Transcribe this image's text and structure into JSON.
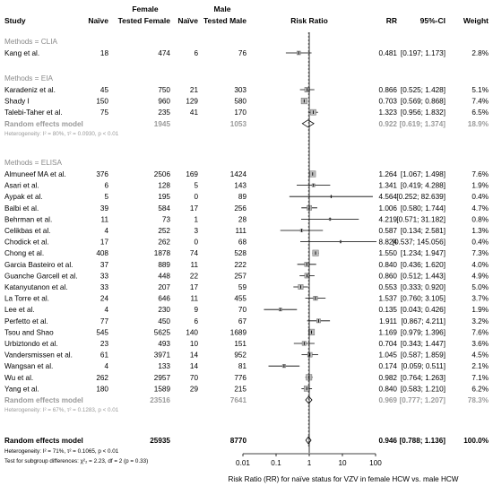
{
  "header": {
    "study": "Study",
    "female_group": "Female",
    "male_group": "Male",
    "naive": "Naïve",
    "tested_female": "Tested Female",
    "tested_male": "Tested Male",
    "risk_ratio": "Risk Ratio",
    "rr": "RR",
    "ci": "95%-CI",
    "weight": "Weight"
  },
  "chart_data": {
    "type": "forest",
    "xlabel": "Risk Ratio (RR) for naïve status for VZV in female HCW vs. male HCW",
    "x_scale": "log",
    "x_ticks": [
      "0.01",
      "0.1",
      "1",
      "10",
      "100"
    ],
    "xlim": [
      0.01,
      100
    ],
    "reference_line": 1,
    "groups": [
      {
        "label": "Methods = CLIA",
        "studies": [
          {
            "study": "Kang et al.",
            "naive_f": "18",
            "tested_f": "474",
            "naive_m": "6",
            "tested_m": "76",
            "rr_text": "0.481",
            "ci_text": "[0.197; 1.173]",
            "weight_text": "2.8%",
            "rr": 0.481,
            "lo": 0.197,
            "hi": 1.173,
            "w": 2.8
          }
        ]
      },
      {
        "label": "Methods = EIA",
        "studies": [
          {
            "study": "Karadeniz et al.",
            "naive_f": "45",
            "tested_f": "750",
            "naive_m": "21",
            "tested_m": "303",
            "rr_text": "0.866",
            "ci_text": "[0.525; 1.428]",
            "weight_text": "5.1%",
            "rr": 0.866,
            "lo": 0.525,
            "hi": 1.428,
            "w": 5.1
          },
          {
            "study": "Shady I",
            "naive_f": "150",
            "tested_f": "960",
            "naive_m": "129",
            "tested_m": "580",
            "rr_text": "0.703",
            "ci_text": "[0.569; 0.868]",
            "weight_text": "7.4%",
            "rr": 0.703,
            "lo": 0.569,
            "hi": 0.868,
            "w": 7.4
          },
          {
            "study": "Talebi-Taher et al.",
            "naive_f": "75",
            "tested_f": "235",
            "naive_m": "41",
            "tested_m": "170",
            "rr_text": "1.323",
            "ci_text": "[0.956; 1.832]",
            "weight_text": "6.5%",
            "rr": 1.323,
            "lo": 0.956,
            "hi": 1.832,
            "w": 6.5
          }
        ],
        "summary": {
          "label": "Random effects model",
          "tested_f": "1945",
          "tested_m": "1053",
          "rr_text": "0.922",
          "ci_text": "[0.619; 1.374]",
          "weight_text": "18.9%",
          "rr": 0.922,
          "lo": 0.619,
          "hi": 1.374
        },
        "heterogeneity": "Heterogeneity: I² = 80%, τ² = 0.0930, p < 0.01"
      },
      {
        "label": "Methods = ELISA",
        "studies": [
          {
            "study": "Almuneef MA et al.",
            "naive_f": "376",
            "tested_f": "2506",
            "naive_m": "169",
            "tested_m": "1424",
            "rr_text": "1.264",
            "ci_text": "[1.067; 1.498]",
            "weight_text": "7.6%",
            "rr": 1.264,
            "lo": 1.067,
            "hi": 1.498,
            "w": 7.6
          },
          {
            "study": "Asari et al.",
            "naive_f": "6",
            "tested_f": "128",
            "naive_m": "5",
            "tested_m": "143",
            "rr_text": "1.341",
            "ci_text": "[0.419; 4.288]",
            "weight_text": "1.9%",
            "rr": 1.341,
            "lo": 0.419,
            "hi": 4.288,
            "w": 1.9
          },
          {
            "study": "Aypak et al.",
            "naive_f": "5",
            "tested_f": "195",
            "naive_m": "0",
            "tested_m": "89",
            "rr_text": "4.564",
            "ci_text": "[0.252; 82.639]",
            "weight_text": "0.4%",
            "rr": 4.564,
            "lo": 0.252,
            "hi": 82.639,
            "w": 0.4
          },
          {
            "study": "Balbi et al.",
            "naive_f": "39",
            "tested_f": "584",
            "naive_m": "17",
            "tested_m": "256",
            "rr_text": "1.006",
            "ci_text": "[0.580; 1.744]",
            "weight_text": "4.7%",
            "rr": 1.006,
            "lo": 0.58,
            "hi": 1.744,
            "w": 4.7
          },
          {
            "study": "Behrman et al.",
            "naive_f": "11",
            "tested_f": "73",
            "naive_m": "1",
            "tested_m": "28",
            "rr_text": "4.219",
            "ci_text": "[0.571; 31.182]",
            "weight_text": "0.8%",
            "rr": 4.219,
            "lo": 0.571,
            "hi": 31.182,
            "w": 0.8
          },
          {
            "study": "Celikbas et al.",
            "naive_f": "4",
            "tested_f": "252",
            "naive_m": "3",
            "tested_m": "111",
            "rr_text": "0.587",
            "ci_text": "[0.134; 2.581]",
            "weight_text": "1.3%",
            "rr": 0.587,
            "lo": 0.134,
            "hi": 2.581,
            "w": 1.3
          },
          {
            "study": "Chodick et al.",
            "naive_f": "17",
            "tested_f": "262",
            "naive_m": "0",
            "tested_m": "68",
            "rr_text": "8.824",
            "ci_text": "[0.537; 145.056]",
            "weight_text": "0.4%",
            "rr": 8.824,
            "lo": 0.537,
            "hi": 145.056,
            "w": 0.4
          },
          {
            "study": "Chong et al.",
            "naive_f": "408",
            "tested_f": "1878",
            "naive_m": "74",
            "tested_m": "528",
            "rr_text": "1.550",
            "ci_text": "[1.234; 1.947]",
            "weight_text": "7.3%",
            "rr": 1.55,
            "lo": 1.234,
            "hi": 1.947,
            "w": 7.3
          },
          {
            "study": "Garcia Basteiro et al.",
            "naive_f": "37",
            "tested_f": "889",
            "naive_m": "11",
            "tested_m": "222",
            "rr_text": "0.840",
            "ci_text": "[0.436; 1.620]",
            "weight_text": "4.0%",
            "rr": 0.84,
            "lo": 0.436,
            "hi": 1.62,
            "w": 4.0
          },
          {
            "study": "Guanche Garcell et al.",
            "naive_f": "33",
            "tested_f": "448",
            "naive_m": "22",
            "tested_m": "257",
            "rr_text": "0.860",
            "ci_text": "[0.512; 1.443]",
            "weight_text": "4.9%",
            "rr": 0.86,
            "lo": 0.512,
            "hi": 1.443,
            "w": 4.9
          },
          {
            "study": "Katanyutanon et al.",
            "naive_f": "33",
            "tested_f": "207",
            "naive_m": "17",
            "tested_m": "59",
            "rr_text": "0.553",
            "ci_text": "[0.333; 0.920]",
            "weight_text": "5.0%",
            "rr": 0.553,
            "lo": 0.333,
            "hi": 0.92,
            "w": 5.0
          },
          {
            "study": "La Torre et al.",
            "naive_f": "24",
            "tested_f": "646",
            "naive_m": "11",
            "tested_m": "455",
            "rr_text": "1.537",
            "ci_text": "[0.760; 3.105]",
            "weight_text": "3.7%",
            "rr": 1.537,
            "lo": 0.76,
            "hi": 3.105,
            "w": 3.7
          },
          {
            "study": "Lee et al.",
            "naive_f": "4",
            "tested_f": "230",
            "naive_m": "9",
            "tested_m": "70",
            "rr_text": "0.135",
            "ci_text": "[0.043; 0.426]",
            "weight_text": "1.9%",
            "rr": 0.135,
            "lo": 0.043,
            "hi": 0.426,
            "w": 1.9
          },
          {
            "study": "Perfetto et al.",
            "naive_f": "77",
            "tested_f": "450",
            "naive_m": "6",
            "tested_m": "67",
            "rr_text": "1.911",
            "ci_text": "[0.867; 4.211]",
            "weight_text": "3.2%",
            "rr": 1.911,
            "lo": 0.867,
            "hi": 4.211,
            "w": 3.2
          },
          {
            "study": "Tsou and Shao",
            "naive_f": "545",
            "tested_f": "5625",
            "naive_m": "140",
            "tested_m": "1689",
            "rr_text": "1.169",
            "ci_text": "[0.979; 1.396]",
            "weight_text": "7.6%",
            "rr": 1.169,
            "lo": 0.979,
            "hi": 1.396,
            "w": 7.6
          },
          {
            "study": "Urbiztondo et al.",
            "naive_f": "23",
            "tested_f": "493",
            "naive_m": "10",
            "tested_m": "151",
            "rr_text": "0.704",
            "ci_text": "[0.343; 1.447]",
            "weight_text": "3.6%",
            "rr": 0.704,
            "lo": 0.343,
            "hi": 1.447,
            "w": 3.6
          },
          {
            "study": "Vandersmissen et al.",
            "naive_f": "61",
            "tested_f": "3971",
            "naive_m": "14",
            "tested_m": "952",
            "rr_text": "1.045",
            "ci_text": "[0.587; 1.859]",
            "weight_text": "4.5%",
            "rr": 1.045,
            "lo": 0.587,
            "hi": 1.859,
            "w": 4.5
          },
          {
            "study": "Wangsan et al.",
            "naive_f": "4",
            "tested_f": "133",
            "naive_m": "14",
            "tested_m": "81",
            "rr_text": "0.174",
            "ci_text": "[0.059; 0.511]",
            "weight_text": "2.1%",
            "rr": 0.174,
            "lo": 0.059,
            "hi": 0.511,
            "w": 2.1
          },
          {
            "study": "Wu et al.",
            "naive_f": "262",
            "tested_f": "2957",
            "naive_m": "70",
            "tested_m": "776",
            "rr_text": "0.982",
            "ci_text": "[0.764; 1.263]",
            "weight_text": "7.1%",
            "rr": 0.982,
            "lo": 0.764,
            "hi": 1.263,
            "w": 7.1
          },
          {
            "study": "Yang et al.",
            "naive_f": "180",
            "tested_f": "1589",
            "naive_m": "29",
            "tested_m": "215",
            "rr_text": "0.840",
            "ci_text": "[0.583; 1.210]",
            "weight_text": "6.2%",
            "rr": 0.84,
            "lo": 0.583,
            "hi": 1.21,
            "w": 6.2
          }
        ],
        "summary": {
          "label": "Random effects model",
          "tested_f": "23516",
          "tested_m": "7641",
          "rr_text": "0.969",
          "ci_text": "[0.777; 1.207]",
          "weight_text": "78.3%",
          "rr": 0.969,
          "lo": 0.777,
          "hi": 1.207
        },
        "heterogeneity": "Heterogeneity: I² = 67%, τ² = 0.1283, p < 0.01"
      }
    ],
    "overall": {
      "label": "Random effects model",
      "tested_f": "25935",
      "tested_m": "8770",
      "rr_text": "0.946",
      "ci_text": "[0.788; 1.136]",
      "weight_text": "100.0%",
      "rr": 0.946,
      "lo": 0.788,
      "hi": 1.136
    },
    "overall_heterogeneity": "Heterogeneity: I² = 71%, τ² = 0.1065, p < 0.01",
    "subgroup_test": "Test for subgroup differences: χ²₂ = 2.23, df = 2 (p = 0.33)"
  }
}
